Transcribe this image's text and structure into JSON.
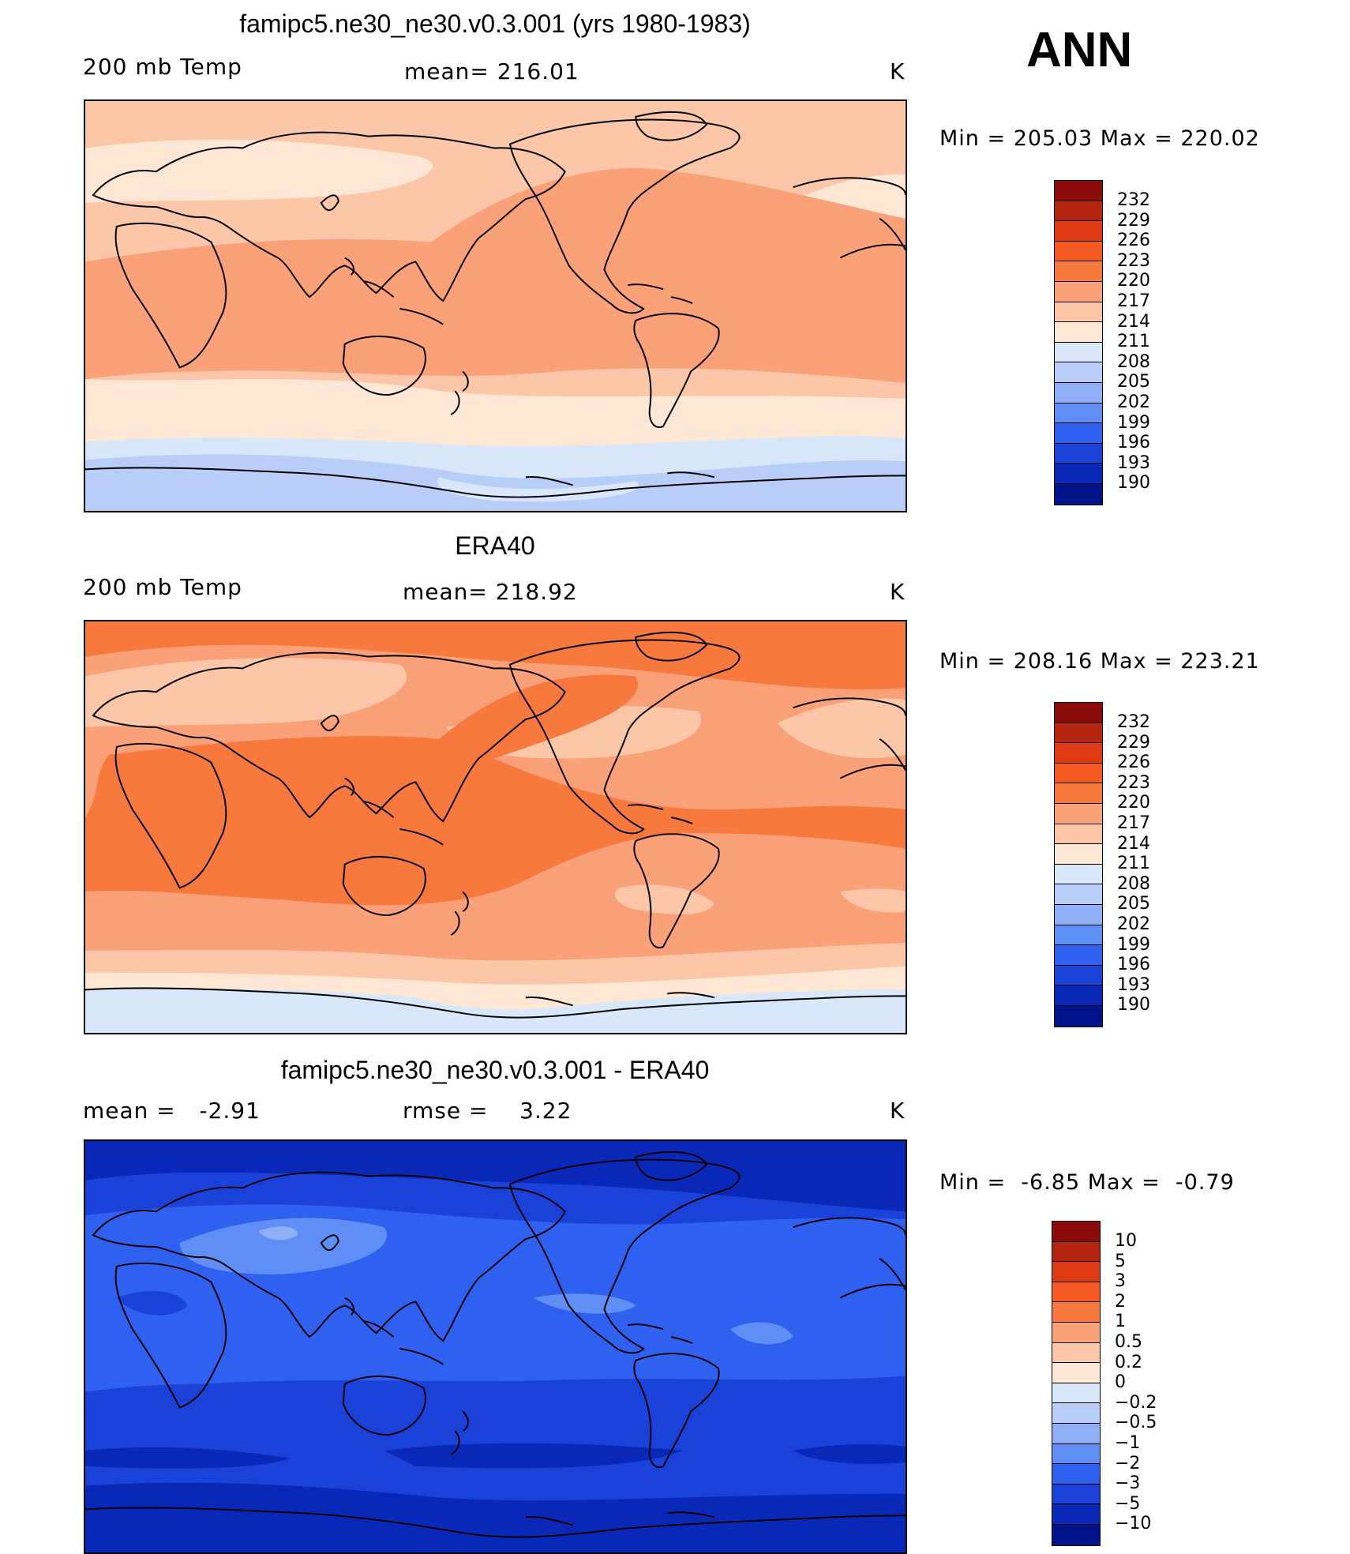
{
  "season_label": "ANN",
  "panels": [
    {
      "title": "famipc5.ne30_ne30.v0.3.001 (yrs 1980-1983)",
      "left_label": "200 mb Temp",
      "center_label": "mean= 216.01",
      "units": "K",
      "min_max": "Min = 205.03 Max = 220.02"
    },
    {
      "title": "ERA40",
      "left_label": "200 mb Temp",
      "center_label": "mean= 218.92",
      "units": "K",
      "min_max": "Min = 208.16 Max = 223.21"
    },
    {
      "title": "famipc5.ne30_ne30.v0.3.001 - ERA40",
      "left_label": "mean =   -2.91",
      "center_label": "rmse =    3.22",
      "units": "K",
      "min_max": "Min =  -6.85 Max =  -0.79"
    }
  ],
  "colorbars": [
    {
      "labels": [
        "232",
        "229",
        "226",
        "223",
        "220",
        "217",
        "214",
        "211",
        "208",
        "205",
        "202",
        "199",
        "196",
        "193",
        "190"
      ],
      "colors": [
        "#8b0a0a",
        "#b52410",
        "#dd3a12",
        "#f55a22",
        "#f8793e",
        "#fba17a",
        "#fcc7a8",
        "#fee7d4",
        "#d8e8fa",
        "#b8cdf8",
        "#8fb0f7",
        "#5f8ff5",
        "#3060f0",
        "#1a42d8",
        "#0a28b8",
        "#001489"
      ]
    },
    {
      "labels": [
        "232",
        "229",
        "226",
        "223",
        "220",
        "217",
        "214",
        "211",
        "208",
        "205",
        "202",
        "199",
        "196",
        "193",
        "190"
      ],
      "colors": [
        "#8b0a0a",
        "#b52410",
        "#dd3a12",
        "#f55a22",
        "#f8793e",
        "#fba17a",
        "#fcc7a8",
        "#fee7d4",
        "#d8e8fa",
        "#b8cdf8",
        "#8fb0f7",
        "#5f8ff5",
        "#3060f0",
        "#1a42d8",
        "#0a28b8",
        "#001489"
      ]
    },
    {
      "labels": [
        "10",
        "5",
        "3",
        "2",
        "1",
        "0.5",
        "0.2",
        "0",
        "−0.2",
        "−0.5",
        "−1",
        "−2",
        "−3",
        "−5",
        "−10"
      ],
      "colors": [
        "#8b0a0a",
        "#b52410",
        "#dd3a12",
        "#f55a22",
        "#f8793e",
        "#fba17a",
        "#fcc7a8",
        "#fee7d4",
        "#d8e8fa",
        "#b8cdf8",
        "#8fb0f7",
        "#5f8ff5",
        "#3060f0",
        "#1a42d8",
        "#0a28b8",
        "#001489"
      ]
    }
  ]
}
